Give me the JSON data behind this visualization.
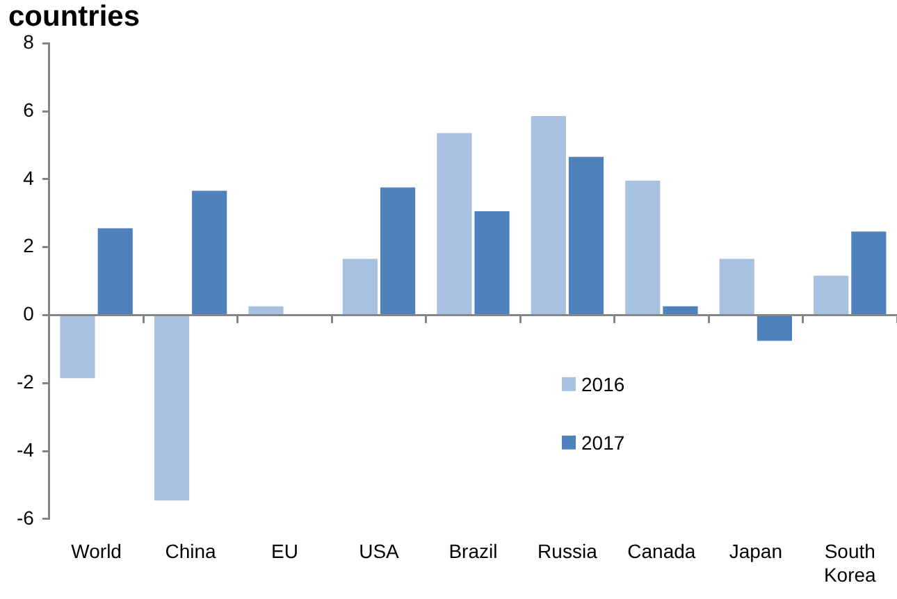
{
  "chart_data": {
    "type": "bar",
    "title": "countries",
    "categories": [
      "World",
      "China",
      "EU",
      "USA",
      "Brazil",
      "Russia",
      "Canada",
      "Japan",
      "South Korea"
    ],
    "series": [
      {
        "name": "2016",
        "color": "#a9c1e0",
        "values": [
          -1.9,
          -5.5,
          0.3,
          1.7,
          5.4,
          5.9,
          4.0,
          1.7,
          1.2
        ]
      },
      {
        "name": "2017",
        "color": "#4f81bd",
        "values": [
          2.6,
          3.7,
          null,
          3.8,
          3.1,
          4.7,
          0.3,
          -0.8,
          2.5
        ]
      }
    ],
    "ylim": [
      -6,
      8
    ],
    "yticks": [
      -6,
      -4,
      -2,
      0,
      2,
      4,
      6,
      8
    ],
    "legend": "bottom right"
  }
}
